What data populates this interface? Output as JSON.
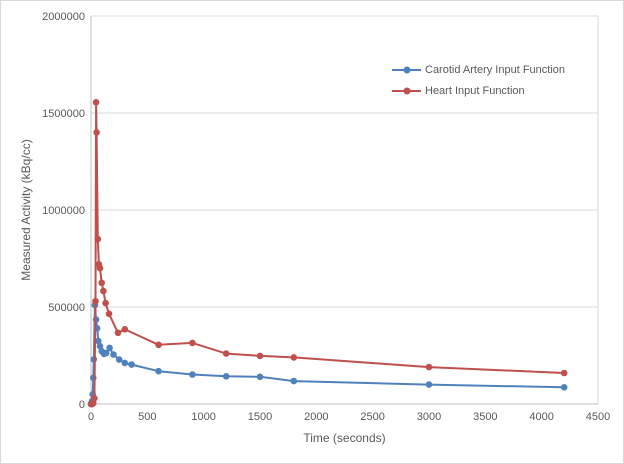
{
  "chart_data": {
    "type": "line",
    "title": "",
    "xlabel": "Time (seconds)",
    "ylabel": "Measured Activity (kBq/cc)",
    "xlim": [
      0,
      4500
    ],
    "ylim": [
      0,
      2000000
    ],
    "x_ticks": [
      0,
      500,
      1000,
      1500,
      2000,
      2500,
      3000,
      3500,
      4000,
      4500
    ],
    "y_ticks": [
      0,
      500000,
      1000000,
      1500000,
      2000000
    ],
    "grid": "horizontal",
    "legend_position": "inside-upper-right",
    "colors": {
      "grid": "#d9d9d9",
      "axis": "#bfbfbf",
      "tick_text": "#595959",
      "frame_border": "#d9d9d9",
      "background": "#ffffff"
    },
    "series": [
      {
        "name": "Carotid Artery Input Function",
        "color": "#4f81bd",
        "marker": "circle",
        "x": [
          0,
          5,
          10,
          15,
          20,
          25,
          35,
          45,
          55,
          65,
          80,
          95,
          115,
          135,
          165,
          200,
          250,
          300,
          360,
          600,
          900,
          1200,
          1500,
          1800,
          3000,
          4200
        ],
        "y": [
          0,
          3000,
          15000,
          50000,
          135000,
          230000,
          510000,
          435000,
          390000,
          325000,
          298000,
          272000,
          258000,
          263000,
          289000,
          255000,
          229000,
          212000,
          203000,
          169000,
          152000,
          143000,
          140000,
          118000,
          100000,
          86000
        ]
      },
      {
        "name": "Heart Input Function",
        "color": "#c0504d",
        "marker": "circle",
        "x": [
          0,
          5,
          10,
          15,
          20,
          30,
          40,
          45,
          50,
          60,
          70,
          80,
          95,
          110,
          130,
          160,
          240,
          300,
          600,
          900,
          1200,
          1500,
          1800,
          3000,
          4200
        ],
        "y": [
          0,
          0,
          0,
          2000,
          5000,
          30000,
          530000,
          1555000,
          1400000,
          850000,
          720000,
          700000,
          625000,
          582000,
          520000,
          465000,
          367000,
          385000,
          305000,
          315000,
          260000,
          248000,
          240000,
          190000,
          160000
        ]
      }
    ]
  }
}
